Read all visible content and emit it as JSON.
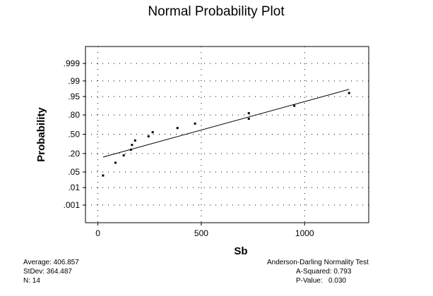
{
  "chart_data": {
    "type": "scatter",
    "title": "Normal Probability Plot",
    "xlabel": "Sb",
    "ylabel": "Probability",
    "xlim": [
      -60,
      1310
    ],
    "x_ticks": [
      0,
      500,
      1000
    ],
    "x_tick_labels": [
      "0",
      "500",
      "1000"
    ],
    "y_scale": "normal-probability",
    "y_ticks": [
      0.001,
      0.01,
      0.05,
      0.2,
      0.5,
      0.8,
      0.95,
      0.99,
      0.999
    ],
    "y_tick_labels": [
      ".001",
      ".01",
      ".05",
      ".20",
      ".50",
      ".80",
      ".95",
      ".99",
      ".999"
    ],
    "grid": true,
    "points": [
      {
        "x": 25,
        "p": 0.036
      },
      {
        "x": 85,
        "p": 0.107
      },
      {
        "x": 125,
        "p": 0.179
      },
      {
        "x": 160,
        "p": 0.25
      },
      {
        "x": 165,
        "p": 0.321
      },
      {
        "x": 180,
        "p": 0.393
      },
      {
        "x": 245,
        "p": 0.464
      },
      {
        "x": 265,
        "p": 0.536
      },
      {
        "x": 385,
        "p": 0.607
      },
      {
        "x": 470,
        "p": 0.679
      },
      {
        "x": 730,
        "p": 0.75
      },
      {
        "x": 730,
        "p": 0.821
      },
      {
        "x": 950,
        "p": 0.893
      },
      {
        "x": 1215,
        "p": 0.964
      }
    ],
    "fit_line": {
      "x0": 25,
      "p0": 0.16,
      "x1": 1215,
      "p1": 0.975
    }
  },
  "stats": {
    "average": "Average: 406.857",
    "stdev": "StDev: 364.487",
    "n": "N: 14",
    "test_title": "Anderson-Darling Normality Test",
    "a_squared": "A-Squared: 0.793",
    "p_value": "P-Value:   0.030"
  }
}
